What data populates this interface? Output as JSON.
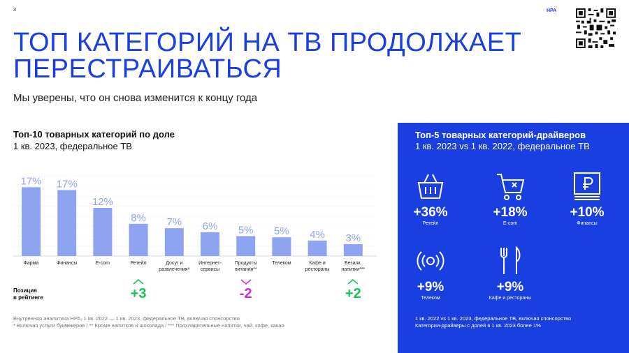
{
  "page_number": "3",
  "brand": "НРА",
  "title": "ТОП КАТЕГОРИЙ НА ТВ ПРОДОЛЖАЕТ ПЕРЕСТРАИВАТЬСЯ",
  "subtitle": "Мы уверены, что он снова изменится к концу года",
  "chart_data": {
    "type": "bar",
    "title": "Топ-10 товарных категорий по доле",
    "subtitle": "1 кв. 2023, федеральное ТВ",
    "categories": [
      [
        "Фарма"
      ],
      [
        "Финансы"
      ],
      [
        "E-com"
      ],
      [
        "Ретейл"
      ],
      [
        "Досуг и",
        "развлечения*"
      ],
      [
        "Интернет-",
        "сервисы"
      ],
      [
        "Продукты",
        "питания**"
      ],
      [
        "Телеком"
      ],
      [
        "Кафе и",
        "рестораны"
      ],
      [
        "Безалк.",
        "напитки***"
      ]
    ],
    "values": [
      17,
      17,
      12,
      8,
      7,
      6,
      5,
      5,
      4,
      3
    ],
    "value_labels": [
      "17%",
      "17%",
      "12%",
      "8%",
      "7%",
      "6%",
      "5%",
      "5%",
      "4%",
      "3%"
    ],
    "bar_values_for_height": [
      17.3,
      16.6,
      12.1,
      8.1,
      7.0,
      6.0,
      5.0,
      4.7,
      3.9,
      3.0
    ],
    "ylim": [
      0,
      20
    ],
    "grid": true,
    "bar_color": "#8ea4f0"
  },
  "ranking": {
    "label_line1": "Позиция",
    "label_line2": "в рейтинге",
    "changes": [
      {
        "category_index": 3,
        "value": "+3",
        "direction": "up",
        "color": "#16c05a"
      },
      {
        "category_index": 6,
        "value": "-2",
        "direction": "down",
        "color": "#d02ad6"
      },
      {
        "category_index": 9,
        "value": "+2",
        "direction": "up",
        "color": "#16c05a"
      }
    ]
  },
  "footnotes": [
    "Внутренняя аналитика НРА, 1 кв. 2022 — 1 кв. 2023, федеральное ТВ, включая спонсорство",
    "* Включая услуги букмекеров / ** Кроме напитков и шоколада / *** Прохладительные напитки, чай, кофе, какао"
  ],
  "drivers_panel": {
    "title": "Топ-5 товарных категорий-драйверов",
    "subtitle": "1 кв. 2023 vs 1 кв. 2022, федеральное ТВ",
    "background": "#1a3fe0",
    "items": [
      {
        "icon": "basket-icon",
        "value": "+36%",
        "label": "Ретейл"
      },
      {
        "icon": "cart-icon",
        "value": "+18%",
        "label": "E-com"
      },
      {
        "icon": "ruble-banknote-icon",
        "value": "+10%",
        "label": "Финансы"
      },
      {
        "icon": "signal-icon",
        "value": "+9%",
        "label": "Телеком"
      },
      {
        "icon": "fork-knife-icon",
        "value": "+9%",
        "label": "Кафе и рестораны"
      }
    ],
    "notes": [
      "1 кв. 2022 vs 1 кв. 2023, федеральное ТВ, включая спонсорство",
      "Категории-драйверы с долей в 1 кв. 2023 более 1%"
    ]
  },
  "qr_icon": "qr-code-icon"
}
